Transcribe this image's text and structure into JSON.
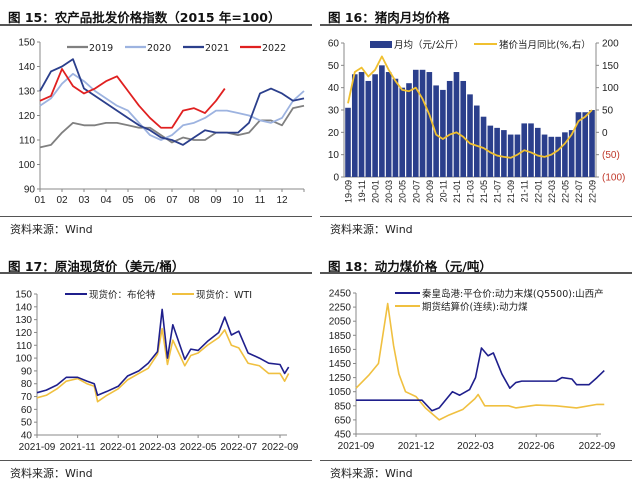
{
  "source_label": "资料来源：Wind",
  "chart_data": [
    {
      "id": "fig15",
      "type": "line",
      "title": "图 15：农产品批发价格指数（2015 年=100）",
      "ylim": [
        90,
        150
      ],
      "yticks": [
        90,
        100,
        110,
        120,
        130,
        140,
        150
      ],
      "xticks": [
        "01",
        "02",
        "03",
        "04",
        "05",
        "06",
        "07",
        "08",
        "09",
        "10",
        "11",
        "12"
      ],
      "legend": "top",
      "series": [
        {
          "name": "2019",
          "color": "#808080",
          "x": [
            1,
            1.5,
            2,
            2.5,
            3,
            3.5,
            4,
            4.5,
            5,
            5.5,
            6,
            6.5,
            7,
            7.5,
            8,
            8.5,
            9,
            9.5,
            10,
            10.5,
            11,
            11.5,
            12,
            12.5,
            13
          ],
          "values": [
            107,
            108,
            113,
            117,
            116,
            116,
            117,
            117,
            116,
            115,
            115,
            112,
            109,
            111,
            110,
            110,
            113,
            113,
            112,
            113,
            118,
            118,
            116,
            123,
            124
          ]
        },
        {
          "name": "2020",
          "color": "#9db3e0",
          "x": [
            1,
            1.5,
            2,
            2.5,
            3,
            3.5,
            4,
            4.5,
            5,
            5.5,
            6,
            6.5,
            7,
            7.5,
            8,
            8.5,
            9,
            9.5,
            10,
            10.5,
            11,
            11.5,
            12,
            12.5,
            13
          ],
          "values": [
            124,
            127,
            133,
            137,
            134,
            130,
            127,
            124,
            122,
            117,
            112,
            110,
            112,
            116,
            117,
            119,
            122,
            122,
            121,
            120,
            118,
            117,
            119,
            126,
            130
          ]
        },
        {
          "name": "2021",
          "color": "#2b3f8c",
          "x": [
            1,
            1.5,
            2,
            2.5,
            3,
            3.5,
            4,
            4.5,
            5,
            5.5,
            6,
            6.5,
            7,
            7.5,
            8,
            8.5,
            9,
            9.5,
            10,
            10.5,
            11,
            11.5,
            12,
            12.5,
            13
          ],
          "values": [
            130,
            138,
            140,
            143,
            131,
            128,
            125,
            122,
            119,
            116,
            114,
            111,
            110,
            108,
            111,
            114,
            113,
            113,
            113,
            117,
            129,
            131,
            129,
            126,
            127
          ]
        },
        {
          "name": "2022",
          "color": "#e02020",
          "x": [
            1,
            1.5,
            2,
            2.5,
            3,
            3.5,
            4,
            4.5,
            5,
            5.5,
            6,
            6.5,
            7,
            7.5,
            8,
            8.5,
            9,
            9.4
          ],
          "values": [
            126,
            128,
            139,
            132,
            129,
            131,
            134,
            136,
            130,
            124,
            119,
            115,
            115,
            122,
            123,
            121,
            126,
            131
          ]
        }
      ]
    },
    {
      "id": "fig16",
      "type": "bar+line",
      "title": "图 16：猪肉月均价格",
      "ylim": [
        0,
        60
      ],
      "yticks": [
        0,
        10,
        20,
        30,
        40,
        50,
        60
      ],
      "y2lim": [
        -100,
        200
      ],
      "y2ticks": [
        "(100)",
        "(50)",
        "0",
        "50",
        "100",
        "150",
        "200"
      ],
      "y2tick_values": [
        -100,
        -50,
        0,
        50,
        100,
        150,
        200
      ],
      "y2_negative_color": "#c0392b",
      "categories": [
        "19-09",
        "19-10",
        "19-11",
        "19-12",
        "20-01",
        "20-02",
        "20-03",
        "20-04",
        "20-05",
        "20-06",
        "20-07",
        "20-08",
        "20-09",
        "20-10",
        "20-11",
        "20-12",
        "21-01",
        "21-02",
        "21-03",
        "21-04",
        "21-05",
        "21-06",
        "21-07",
        "21-08",
        "21-09",
        "21-10",
        "21-11",
        "21-12",
        "22-01",
        "22-02",
        "22-03",
        "22-04",
        "22-05",
        "22-06",
        "22-07",
        "22-08",
        "22-09"
      ],
      "xtick_labels": [
        "19-09",
        "19-11",
        "20-01",
        "20-03",
        "20-05",
        "20-07",
        "20-09",
        "20-11",
        "21-01",
        "21-03",
        "21-05",
        "21-07",
        "21-09",
        "21-11",
        "22-01",
        "22-03",
        "22-05",
        "22-07",
        "22-09"
      ],
      "legend": "top",
      "series": [
        {
          "name": "月均（元/公斤）",
          "kind": "bar",
          "axis": "left",
          "color": "#2b3f8c",
          "values": [
            31,
            46,
            47,
            43,
            46,
            50,
            47,
            44,
            40,
            42,
            48,
            48,
            47,
            41,
            39,
            43,
            47,
            43,
            37,
            32,
            27,
            23,
            22,
            21,
            19,
            19,
            24,
            24,
            22,
            19,
            18,
            18,
            20,
            21,
            29,
            29,
            30
          ]
        },
        {
          "name": "猪价当月同比(%,右）",
          "kind": "line",
          "axis": "right",
          "color": "#f0c030",
          "values": [
            65,
            135,
            145,
            125,
            140,
            170,
            140,
            115,
            95,
            92,
            100,
            75,
            40,
            -5,
            -15,
            -5,
            0,
            -10,
            -25,
            -30,
            -35,
            -45,
            -52,
            -55,
            -57,
            -50,
            -40,
            -45,
            -52,
            -55,
            -50,
            -40,
            -25,
            -5,
            25,
            35,
            50
          ]
        }
      ]
    },
    {
      "id": "fig17",
      "type": "line",
      "title": "图 17：原油现货价（美元/桶）",
      "ylim": [
        40,
        150
      ],
      "yticks": [
        40,
        50,
        60,
        70,
        80,
        90,
        100,
        110,
        120,
        130,
        140,
        150
      ],
      "xticks": [
        "2021-09",
        "2021-11",
        "2022-01",
        "2022-03",
        "2022-05",
        "2022-07",
        "2022-09"
      ],
      "legend": "top",
      "series": [
        {
          "name": "现货价：布伦特",
          "color": "#1f1f8c",
          "x": [
            "2021-09-01",
            "2021-09-15",
            "2021-10-01",
            "2021-10-15",
            "2021-11-01",
            "2021-11-15",
            "2021-11-26",
            "2021-12-01",
            "2021-12-15",
            "2022-01-01",
            "2022-01-15",
            "2022-02-01",
            "2022-02-15",
            "2022-03-01",
            "2022-03-08",
            "2022-03-16",
            "2022-03-24",
            "2022-04-11",
            "2022-04-20",
            "2022-05-01",
            "2022-05-15",
            "2022-06-01",
            "2022-06-10",
            "2022-06-20",
            "2022-07-01",
            "2022-07-15",
            "2022-08-01",
            "2022-08-15",
            "2022-09-01",
            "2022-09-08",
            "2022-09-14"
          ],
          "values": [
            73,
            75,
            79,
            85,
            85,
            82,
            80,
            71,
            74,
            78,
            86,
            90,
            96,
            105,
            138,
            100,
            126,
            99,
            107,
            106,
            113,
            120,
            132,
            118,
            121,
            104,
            100,
            96,
            95,
            88,
            93
          ]
        },
        {
          "name": "现货价：WTI",
          "color": "#f0c040",
          "x": [
            "2021-09-01",
            "2021-09-15",
            "2021-10-01",
            "2021-10-15",
            "2021-11-01",
            "2021-11-15",
            "2021-11-26",
            "2021-12-01",
            "2021-12-15",
            "2022-01-01",
            "2022-01-15",
            "2022-02-01",
            "2022-02-15",
            "2022-03-01",
            "2022-03-08",
            "2022-03-16",
            "2022-03-24",
            "2022-04-11",
            "2022-04-20",
            "2022-05-01",
            "2022-05-15",
            "2022-06-01",
            "2022-06-10",
            "2022-06-20",
            "2022-07-01",
            "2022-07-15",
            "2022-08-01",
            "2022-08-15",
            "2022-09-01",
            "2022-09-08",
            "2022-09-14"
          ],
          "values": [
            69,
            71,
            76,
            82,
            84,
            80,
            78,
            66,
            71,
            76,
            83,
            88,
            92,
            103,
            123,
            95,
            114,
            94,
            102,
            104,
            110,
            116,
            122,
            110,
            108,
            96,
            94,
            88,
            88,
            82,
            88
          ]
        }
      ]
    },
    {
      "id": "fig18",
      "type": "line",
      "title": "图 18：动力煤价格（元/吨）",
      "ylim": [
        450,
        2450
      ],
      "yticks": [
        450,
        650,
        850,
        1050,
        1250,
        1450,
        1650,
        1850,
        2050,
        2250,
        2450
      ],
      "xticks": [
        "2021-09",
        "2021-12",
        "2022-03",
        "2022-06",
        "2022-09"
      ],
      "legend": "top",
      "series": [
        {
          "name": "秦皇岛港:平仓价:动力末煤(Q5500):山西产",
          "color": "#1f1f8c",
          "x": [
            "2021-09-01",
            "2021-12-10",
            "2021-12-25",
            "2022-01-05",
            "2022-01-25",
            "2022-02-05",
            "2022-02-20",
            "2022-03-01",
            "2022-03-10",
            "2022-03-20",
            "2022-03-28",
            "2022-04-10",
            "2022-04-22",
            "2022-05-01",
            "2022-05-10",
            "2022-06-01",
            "2022-07-01",
            "2022-07-10",
            "2022-07-25",
            "2022-08-01",
            "2022-08-20",
            "2022-09-01",
            "2022-09-12"
          ],
          "values": [
            930,
            930,
            780,
            820,
            1050,
            1000,
            1080,
            1250,
            1670,
            1560,
            1600,
            1300,
            1100,
            1180,
            1200,
            1200,
            1200,
            1250,
            1230,
            1150,
            1150,
            1250,
            1350
          ]
        },
        {
          "name": "期货结算价(连续):动力煤",
          "color": "#f0c040",
          "x": [
            "2021-09-01",
            "2021-09-20",
            "2021-10-05",
            "2021-10-19",
            "2021-10-28",
            "2021-11-05",
            "2021-11-15",
            "2021-12-01",
            "2021-12-15",
            "2022-01-05",
            "2022-01-20",
            "2022-02-10",
            "2022-02-28",
            "2022-03-05",
            "2022-03-15",
            "2022-04-20",
            "2022-05-01",
            "2022-06-01",
            "2022-07-01",
            "2022-08-01",
            "2022-09-01",
            "2022-09-12"
          ],
          "values": [
            1100,
            1280,
            1450,
            2300,
            1700,
            1300,
            1050,
            980,
            820,
            650,
            720,
            800,
            950,
            1010,
            850,
            850,
            820,
            860,
            850,
            820,
            870,
            870
          ]
        }
      ]
    }
  ]
}
